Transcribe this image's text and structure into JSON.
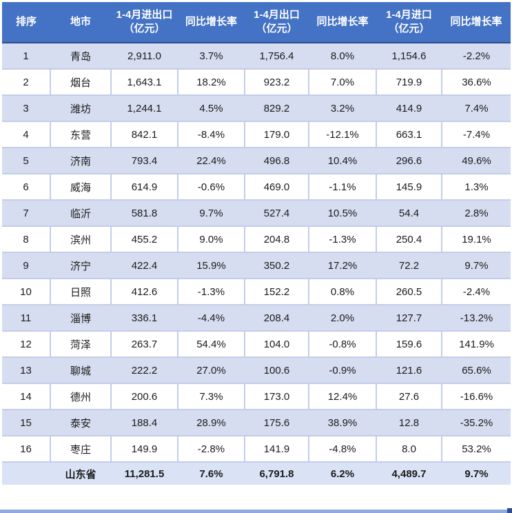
{
  "table": {
    "headers": [
      "排序",
      "地市",
      "1-4月进出口\n（亿元）",
      "同比增长率",
      "1-4月出口\n（亿元）",
      "同比增长率",
      "1-4月进口\n（亿元）",
      "同比增长率"
    ],
    "rows": [
      [
        "1",
        "青岛",
        "2,911.0",
        "3.7%",
        "1,756.4",
        "8.0%",
        "1,154.6",
        "-2.2%"
      ],
      [
        "2",
        "烟台",
        "1,643.1",
        "18.2%",
        "923.2",
        "7.0%",
        "719.9",
        "36.6%"
      ],
      [
        "3",
        "潍坊",
        "1,244.1",
        "4.5%",
        "829.2",
        "3.2%",
        "414.9",
        "7.4%"
      ],
      [
        "4",
        "东营",
        "842.1",
        "-8.4%",
        "179.0",
        "-12.1%",
        "663.1",
        "-7.4%"
      ],
      [
        "5",
        "济南",
        "793.4",
        "22.4%",
        "496.8",
        "10.4%",
        "296.6",
        "49.6%"
      ],
      [
        "6",
        "威海",
        "614.9",
        "-0.6%",
        "469.0",
        "-1.1%",
        "145.9",
        "1.3%"
      ],
      [
        "7",
        "临沂",
        "581.8",
        "9.7%",
        "527.4",
        "10.5%",
        "54.4",
        "2.8%"
      ],
      [
        "8",
        "滨州",
        "455.2",
        "9.0%",
        "204.8",
        "-1.3%",
        "250.4",
        "19.1%"
      ],
      [
        "9",
        "济宁",
        "422.4",
        "15.9%",
        "350.2",
        "17.2%",
        "72.2",
        "9.7%"
      ],
      [
        "10",
        "日照",
        "412.6",
        "-1.3%",
        "152.2",
        "0.8%",
        "260.5",
        "-2.4%"
      ],
      [
        "11",
        "淄博",
        "336.1",
        "-4.4%",
        "208.4",
        "2.0%",
        "127.7",
        "-13.2%"
      ],
      [
        "12",
        "菏泽",
        "263.7",
        "54.4%",
        "104.0",
        "-0.8%",
        "159.6",
        "141.9%"
      ],
      [
        "13",
        "聊城",
        "222.2",
        "27.0%",
        "100.6",
        "-0.9%",
        "121.6",
        "65.6%"
      ],
      [
        "14",
        "德州",
        "200.6",
        "7.3%",
        "173.0",
        "12.4%",
        "27.6",
        "-16.6%"
      ],
      [
        "15",
        "泰安",
        "188.4",
        "28.9%",
        "175.6",
        "38.9%",
        "12.8",
        "-35.2%"
      ],
      [
        "16",
        "枣庄",
        "149.9",
        "-2.8%",
        "141.9",
        "-4.8%",
        "8.0",
        "53.2%"
      ]
    ],
    "total_row": [
      "",
      "山东省",
      "11,281.5",
      "7.6%",
      "6,791.8",
      "6.2%",
      "4,489.7",
      "9.7%"
    ]
  },
  "colors": {
    "header_bg": "#4472C4",
    "header_text": "#FFFFFF",
    "row_tint_bg": "#D6DDF0",
    "row_white_bg": "#FFFFFF",
    "total_row_bg": "#DAE3F5",
    "grid_border": "#C3CDE8",
    "header_bottom_border": "#2C4D8E",
    "bottom_bar": "#8FAADC",
    "corner_handle": "#2E4B8F",
    "body_text": "#1A1A1A"
  }
}
